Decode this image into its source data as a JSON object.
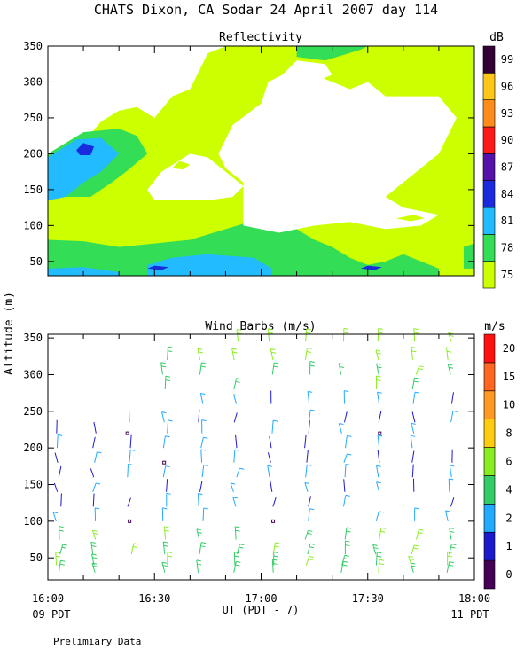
{
  "title": "CHATS Dixon, CA  Sodar  24 April 2007  day 114",
  "shared_ylabel": "Altitude (m)",
  "footer": {
    "x_axis_label": "UT  (PDT - 7)",
    "left_local_time": "09 PDT",
    "right_local_time": "11 PDT",
    "note": "Prelimiary Data"
  },
  "colors": {
    "reflectivity_levels": [
      "#ccff00",
      "#33dd55",
      "#22bbff",
      "#1a2bdd",
      "#5511aa",
      "#ff1a1a",
      "#ff8c1a",
      "#ffc61a",
      "#330033"
    ],
    "wind_levels": [
      "#440055",
      "#1a1acc",
      "#22aaff",
      "#33cc66",
      "#88ee22",
      "#ffcc11",
      "#ff9922",
      "#ff6622",
      "#ff1111"
    ]
  },
  "chart_data": [
    {
      "type": "heatmap",
      "title": "Reflectivity",
      "colorbar_label": "dB",
      "colorbar_ticks": [
        "75",
        "78",
        "81",
        "84",
        "87",
        "90",
        "93",
        "96",
        "99"
      ],
      "x_ticks": [
        "16:00",
        "16:30",
        "17:00",
        "17:30",
        "18:00"
      ],
      "y_ticks": [
        "50",
        "100",
        "150",
        "200",
        "250",
        "300",
        "350"
      ],
      "xlim": [
        "16:00",
        "18:00"
      ],
      "ylim": [
        30,
        350
      ],
      "approx_fields": {
        "white": "no data (blank) over 17:00-17:55 at 100-330 m and 16:30-16:55 at 130-200 m",
        "75_78": "most of domain",
        "78_81": "16:00-16:25 at 120-270 m, near-ground band 40-80 m, 17:05-17:25 at 340-350 m",
        "81_84": "16:00-16:10 at 130-200 m, near ground 16:25-17:10 at 40-65 m",
        "84_87": "16:07 at 205 m, 16:38 at 42 m, 17:25 at 42 m"
      }
    },
    {
      "type": "scatter",
      "title": "Wind Barbs (m/s)",
      "colorbar_label": "m/s",
      "colorbar_ticks": [
        "0",
        "1",
        "2",
        "4",
        "6",
        "8",
        "10",
        "15",
        "20"
      ],
      "x_ticks": [
        "16:00",
        "16:30",
        "17:00",
        "17:30",
        "18:00"
      ],
      "y_ticks": [
        "50",
        "100",
        "150",
        "200",
        "250",
        "300",
        "350"
      ],
      "xlim": [
        "16:00",
        "18:00"
      ],
      "ylim": [
        20,
        355
      ],
      "barb_times": [
        "16:03",
        "16:13",
        "16:23",
        "16:33",
        "16:43",
        "16:53",
        "17:03",
        "17:13",
        "17:23",
        "17:33",
        "17:43",
        "17:53"
      ],
      "barb_altitudes": [
        30,
        40,
        55,
        75,
        100,
        120,
        140,
        160,
        180,
        200,
        220,
        235,
        260,
        280,
        300,
        320,
        345
      ],
      "note": "wind barbs shown as short colored line segments, speed 1-8 m/s"
    }
  ]
}
